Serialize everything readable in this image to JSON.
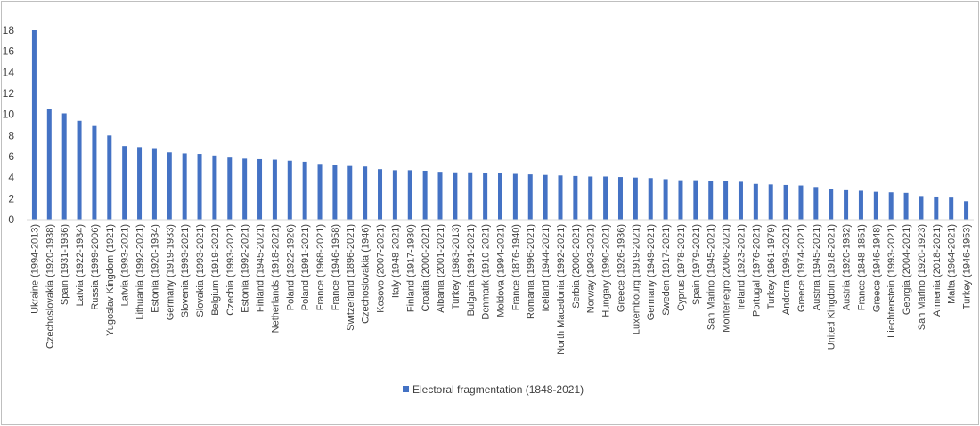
{
  "chart_data": {
    "type": "bar",
    "title": "",
    "xlabel": "",
    "ylabel": "",
    "ylim": [
      0,
      18
    ],
    "yticks": [
      0,
      2,
      4,
      6,
      8,
      10,
      12,
      14,
      16,
      18
    ],
    "grid": false,
    "legend_position": "bottom",
    "bar_color": "#4472c4",
    "categories": [
      "Ukraine (1994-2013)",
      "Czechoslovakia (1920-1938)",
      "Spain (1931-1936)",
      "Latvia (1922-1934)",
      "Russia (1999-2006)",
      "Yugoslav Kingdom (1921)",
      "Latvia (1993-2021)",
      "Lithuania (1992-2021)",
      "Estonia (1920-1934)",
      "Germany (1919-1933)",
      "Slovenia (1993-2021)",
      "Slovakia (1993-2021)",
      "Belgium (1919-2021)",
      "Czechia (1993-2021)",
      "Estonia (1992-2021)",
      "Finland (1945-2021)",
      "Netherlands (1918-2021)",
      "Poland (1922-1926)",
      "Poland (1991-2021)",
      "France (1968-2021)",
      "France (1946-1958)",
      "Switzerland (1896-2021)",
      "Czechoslovakia (1946)",
      "Kosovo (2007-2021)",
      "Italy (1948-2021)",
      "Finland (1917-1930)",
      "Croatia (2000-2021)",
      "Albania (2001-2021)",
      "Turkey (1983-2013)",
      "Bulgaria (1991-2021)",
      "Denmark (1910-2021)",
      "Moldova (1994-2021)",
      "France (1876-1940)",
      "Romania (1996-2021)",
      "Iceland (1944-2021)",
      "North Macedonia (1992-2021)",
      "Serbia (2000-2021)",
      "Norway (1903-2021)",
      "Hungary (1990-2021)",
      "Greece (1926-1936)",
      "Luxembourg (1919-2021)",
      "Germany (1949-2021)",
      "Sweden (1917-2021)",
      "Cyprus (1978-2021)",
      "Spain (1979-2021)",
      "San Marino (1945-2021)",
      "Montenegro (2006-2021)",
      "Ireland (1923-2021)",
      "Portugal (1976-2021)",
      "Turkey (1961-1979)",
      "Andorra (1993-2021)",
      "Greece (1974-2021)",
      "Austria (1945-2021)",
      "United Kingdom (1918-2021)",
      "Austria (1920-1932)",
      "France (1848-1851)",
      "Greece (1946-1948)",
      "Liechtenstein (1993-2021)",
      "Georgia (2004-2021)",
      "San Marino (1920-1923)",
      "Armenia (2018-2021)",
      "Malta (1964-2021)",
      "Turkey (1946-1953)"
    ],
    "series": [
      {
        "name": "Electoral fragmentation (1848-2021)",
        "values": [
          18.0,
          10.5,
          10.1,
          9.4,
          8.9,
          8.0,
          7.0,
          6.9,
          6.8,
          6.4,
          6.3,
          6.25,
          6.1,
          5.9,
          5.8,
          5.75,
          5.7,
          5.6,
          5.5,
          5.3,
          5.2,
          5.1,
          5.05,
          4.8,
          4.7,
          4.7,
          4.65,
          4.55,
          4.5,
          4.5,
          4.45,
          4.4,
          4.35,
          4.3,
          4.25,
          4.2,
          4.15,
          4.1,
          4.1,
          4.05,
          4.0,
          3.95,
          3.85,
          3.75,
          3.75,
          3.7,
          3.65,
          3.6,
          3.4,
          3.35,
          3.3,
          3.25,
          3.1,
          2.9,
          2.8,
          2.75,
          2.65,
          2.6,
          2.55,
          2.25,
          2.2,
          2.1,
          1.75
        ]
      }
    ]
  }
}
